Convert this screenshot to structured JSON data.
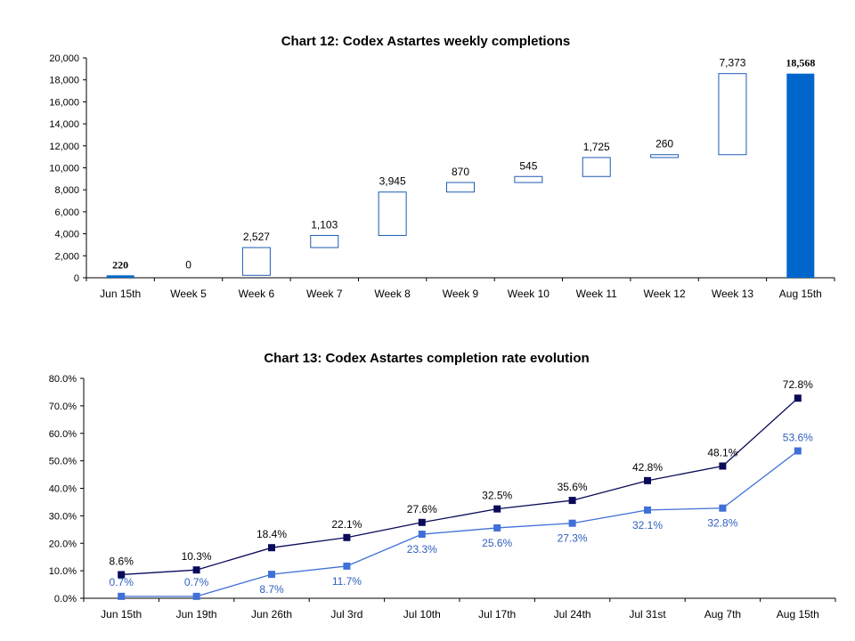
{
  "chart_data": [
    {
      "type": "bar",
      "subtype": "waterfall",
      "title": "Chart 12: Codex Astartes weekly completions",
      "xlabel": "",
      "ylabel": "",
      "ylim": [
        0,
        20000
      ],
      "yticks": [
        "0",
        "2,000",
        "4,000",
        "6,000",
        "8,000",
        "10,000",
        "12,000",
        "14,000",
        "16,000",
        "18,000",
        "20,000"
      ],
      "grid": false,
      "categories": [
        "Jun 15th",
        "Week 5",
        "Week 6",
        "Week 7",
        "Week 8",
        "Week 9",
        "Week 10",
        "Week 11",
        "Week 12",
        "Week 13",
        "Aug 15th"
      ],
      "values": [
        220,
        0,
        2527,
        1103,
        3945,
        870,
        545,
        1725,
        260,
        7373,
        18568
      ],
      "labels": [
        "220",
        "0",
        "2,527",
        "1,103",
        "3,945",
        "870",
        "545",
        "1,725",
        "260",
        "7,373",
        "18,568"
      ],
      "total_indices": [
        0,
        10
      ],
      "colors": {
        "total": "#0066cc",
        "increment_border": "#1f5bb5",
        "increment_fill": "#ffffff"
      }
    },
    {
      "type": "line",
      "title": "Chart 13: Codex Astartes completion rate evolution",
      "xlabel": "",
      "ylabel": "",
      "ylim": [
        0,
        80
      ],
      "yticks": [
        "0.0%",
        "10.0%",
        "20.0%",
        "30.0%",
        "40.0%",
        "50.0%",
        "60.0%",
        "70.0%",
        "80.0%"
      ],
      "grid": false,
      "categories": [
        "Jun 15th",
        "Jun 19th",
        "Jun 26th",
        "Jul 3rd",
        "Jul 10th",
        "Jul 17th",
        "Jul 24th",
        "Jul 31st",
        "Aug 7th",
        "Aug 15th"
      ],
      "series": [
        {
          "values": [
            8.6,
            10.3,
            18.4,
            22.1,
            27.6,
            32.5,
            35.6,
            42.8,
            48.1,
            72.8
          ],
          "labels": [
            "8.6%",
            "10.3%",
            "18.4%",
            "22.1%",
            "27.6%",
            "32.5%",
            "35.6%",
            "42.8%",
            "48.1%",
            "72.8%"
          ],
          "color": "#0a0a5a",
          "label_color": "#000000"
        },
        {
          "values": [
            0.7,
            0.7,
            8.7,
            11.7,
            23.3,
            25.6,
            27.3,
            32.1,
            32.8,
            53.6
          ],
          "labels": [
            "0.7%",
            "0.7%",
            "8.7%",
            "11.7%",
            "23.3%",
            "25.6%",
            "27.3%",
            "32.1%",
            "32.8%",
            "53.6%"
          ],
          "color": "#3f6fd8",
          "label_color": "#2f5fbf"
        }
      ]
    }
  ]
}
